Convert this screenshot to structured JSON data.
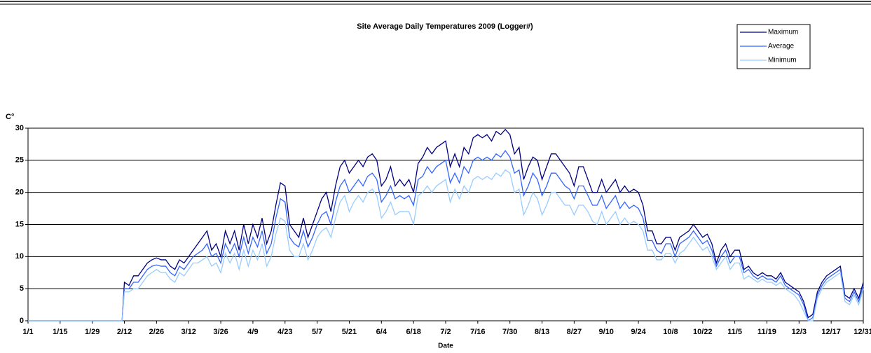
{
  "chart_data": {
    "type": "line",
    "title": "Site Average Daily Temperatures 2009 (Logger#)",
    "x_label": "Date",
    "y_label": "C°",
    "x": [
      0,
      41,
      42,
      44,
      46,
      48,
      50,
      52,
      54,
      56,
      58,
      60,
      62,
      64,
      66,
      68,
      70,
      72,
      74,
      76,
      78,
      80,
      82,
      84,
      86,
      88,
      90,
      92,
      94,
      96,
      98,
      100,
      102,
      104,
      106,
      108,
      110,
      112,
      114,
      116,
      118,
      120,
      122,
      124,
      126,
      128,
      130,
      132,
      134,
      136,
      138,
      140,
      142,
      144,
      146,
      148,
      150,
      152,
      154,
      156,
      158,
      160,
      162,
      164,
      166,
      168,
      170,
      172,
      174,
      176,
      178,
      180,
      182,
      184,
      186,
      188,
      190,
      192,
      194,
      196,
      198,
      200,
      202,
      204,
      206,
      208,
      210,
      212,
      214,
      216,
      218,
      220,
      222,
      224,
      226,
      228,
      230,
      232,
      234,
      236,
      238,
      240,
      242,
      244,
      246,
      248,
      250,
      252,
      254,
      256,
      258,
      260,
      262,
      264,
      266,
      268,
      270,
      272,
      274,
      276,
      278,
      280,
      282,
      284,
      286,
      288,
      290,
      292,
      294,
      296,
      298,
      300,
      302,
      304,
      306,
      308,
      310,
      312,
      314,
      316,
      318,
      320,
      322,
      324,
      326,
      328,
      330,
      332,
      334,
      336,
      338,
      340,
      342,
      344,
      346,
      348,
      350,
      352,
      354,
      356,
      358,
      360,
      362,
      364
    ],
    "series": [
      {
        "name": "Maximum",
        "color": "#000080",
        "values": [
          0,
          0,
          6,
          5.5,
          7,
          7,
          8,
          9,
          9.5,
          9.8,
          9.5,
          9.5,
          8.5,
          8,
          9.5,
          9,
          10,
          11,
          12,
          13,
          14,
          11,
          12,
          10,
          14,
          12,
          14,
          11,
          15,
          12,
          15,
          13,
          16,
          12,
          14,
          18,
          21.5,
          21,
          15,
          14,
          13,
          16,
          13,
          15,
          17,
          19,
          20,
          17,
          21,
          24,
          25,
          23,
          24,
          25,
          24,
          25.5,
          26,
          25,
          21,
          22,
          24,
          21,
          22,
          21,
          22,
          20,
          24.5,
          25.5,
          27,
          26,
          27,
          27.5,
          28,
          24,
          26,
          24,
          27,
          26,
          28.5,
          29,
          28.5,
          29,
          28,
          29.5,
          29,
          29.8,
          29,
          26,
          27,
          22,
          24,
          25.5,
          25,
          22,
          24,
          26,
          26,
          25,
          24,
          23,
          21,
          24,
          24,
          22,
          20,
          20,
          22,
          20,
          21,
          22,
          20,
          21,
          20,
          20.5,
          20,
          18,
          14,
          14,
          12,
          12,
          13,
          13,
          11,
          13,
          13.5,
          14,
          15,
          14,
          13,
          13.5,
          12,
          9,
          11,
          12,
          10,
          11,
          11,
          8,
          8.5,
          7.5,
          7,
          7.5,
          7,
          7,
          6.5,
          7.5,
          6,
          5.5,
          5,
          4.5,
          3,
          0.5,
          1,
          4.5,
          6,
          7,
          7.5,
          8,
          8.5,
          4,
          3.5,
          5,
          3.5,
          6
        ]
      },
      {
        "name": "Average",
        "color": "#3366ff",
        "values": [
          0,
          0,
          5,
          5,
          6,
          6,
          7,
          8,
          8.5,
          8.7,
          8.5,
          8.5,
          7.5,
          7,
          8.5,
          8,
          9,
          10,
          10.5,
          11,
          12,
          10,
          10.5,
          9,
          12,
          10.5,
          12,
          10,
          13,
          10.5,
          13,
          11.5,
          14,
          10.5,
          12,
          16,
          19,
          18.5,
          13,
          12,
          11.5,
          14,
          11.5,
          13,
          15,
          16.5,
          17,
          15,
          18.5,
          21,
          22,
          20,
          21,
          22,
          21,
          22.5,
          23,
          22,
          18.5,
          19.5,
          21,
          19,
          19.5,
          19,
          19.5,
          18,
          22,
          22.5,
          24,
          23,
          24,
          24.5,
          25,
          21.5,
          23,
          21.5,
          24,
          23,
          25,
          25.5,
          25,
          25.5,
          25,
          26,
          25.5,
          26.5,
          25.5,
          23,
          23.5,
          19.5,
          21,
          23,
          22,
          19.5,
          21,
          23,
          23,
          22,
          21,
          20.5,
          19,
          21,
          21,
          19.5,
          18,
          18,
          19.5,
          17.5,
          18.5,
          19.5,
          17.5,
          18.5,
          17.5,
          18,
          17.5,
          16,
          12.5,
          12.5,
          11,
          10.5,
          12,
          12,
          10,
          12,
          12.5,
          13,
          14,
          13,
          12,
          12.5,
          11,
          8.5,
          10,
          11,
          9,
          10,
          10,
          7.5,
          8,
          7,
          6.5,
          7,
          6.5,
          6.5,
          6,
          7,
          5.5,
          5,
          4.5,
          4,
          2.5,
          0,
          0.5,
          4,
          5.5,
          6.5,
          7,
          7.5,
          8,
          3.5,
          3,
          4.5,
          3,
          5.5
        ]
      },
      {
        "name": "Minimum",
        "color": "#99ccff",
        "values": [
          0,
          0,
          4.5,
          4.5,
          5,
          5,
          6,
          7,
          7.5,
          8,
          7.5,
          7.5,
          6.5,
          6,
          7.5,
          7,
          8,
          9,
          9,
          9.5,
          10,
          8.5,
          9,
          7.5,
          10.5,
          9,
          10.5,
          8,
          11,
          8.5,
          11,
          9.5,
          12,
          8.5,
          10,
          13.5,
          16,
          15.5,
          11,
          10,
          10,
          12,
          9.5,
          11,
          13,
          14,
          14.5,
          13,
          16,
          18.5,
          19.5,
          17,
          18.5,
          19.5,
          18.5,
          20,
          20.5,
          19.5,
          16,
          17,
          18.5,
          16.5,
          17,
          17,
          17,
          15,
          19.5,
          20,
          21,
          20,
          21,
          21.5,
          22,
          18.5,
          20.5,
          19,
          21,
          20,
          22,
          22.5,
          22,
          22.5,
          22,
          23,
          22.5,
          23.5,
          23,
          20,
          20.5,
          16.5,
          18,
          20,
          19,
          16.5,
          18,
          20,
          20,
          19,
          18,
          18,
          16.5,
          18,
          18,
          17,
          15.5,
          15,
          17,
          15,
          16,
          17,
          15,
          16,
          15,
          15.5,
          15,
          14,
          11,
          11,
          9.5,
          9.5,
          10.5,
          10.5,
          9,
          10.5,
          11,
          12,
          13,
          12,
          11,
          11.5,
          10,
          8,
          9,
          10,
          8,
          9,
          9,
          6.5,
          7,
          6.5,
          6,
          6.5,
          6,
          6,
          5.5,
          6,
          5,
          4.5,
          4,
          3,
          1.5,
          0,
          0,
          3.5,
          5,
          6,
          6.5,
          7,
          7.5,
          3,
          2.5,
          4,
          2.5,
          5
        ]
      }
    ],
    "xlim": [
      0,
      364
    ],
    "xticks": [
      {
        "value": 0,
        "label": "1/1"
      },
      {
        "value": 14,
        "label": "1/15"
      },
      {
        "value": 28,
        "label": "1/29"
      },
      {
        "value": 42,
        "label": "2/12"
      },
      {
        "value": 56,
        "label": "2/26"
      },
      {
        "value": 70,
        "label": "3/12"
      },
      {
        "value": 84,
        "label": "3/26"
      },
      {
        "value": 98,
        "label": "4/9"
      },
      {
        "value": 112,
        "label": "4/23"
      },
      {
        "value": 126,
        "label": "5/7"
      },
      {
        "value": 140,
        "label": "5/21"
      },
      {
        "value": 154,
        "label": "6/4"
      },
      {
        "value": 168,
        "label": "6/18"
      },
      {
        "value": 182,
        "label": "7/2"
      },
      {
        "value": 196,
        "label": "7/16"
      },
      {
        "value": 210,
        "label": "7/30"
      },
      {
        "value": 224,
        "label": "8/13"
      },
      {
        "value": 238,
        "label": "8/27"
      },
      {
        "value": 252,
        "label": "9/10"
      },
      {
        "value": 266,
        "label": "9/24"
      },
      {
        "value": 280,
        "label": "10/8"
      },
      {
        "value": 294,
        "label": "10/22"
      },
      {
        "value": 308,
        "label": "11/5"
      },
      {
        "value": 322,
        "label": "11/19"
      },
      {
        "value": 336,
        "label": "12/3"
      },
      {
        "value": 350,
        "label": "12/17"
      },
      {
        "value": 364,
        "label": "12/31"
      }
    ],
    "ylim": [
      0,
      30
    ],
    "yticks": [
      0,
      5,
      10,
      15,
      20,
      25,
      30
    ],
    "grid": true,
    "legend": "top-right"
  }
}
